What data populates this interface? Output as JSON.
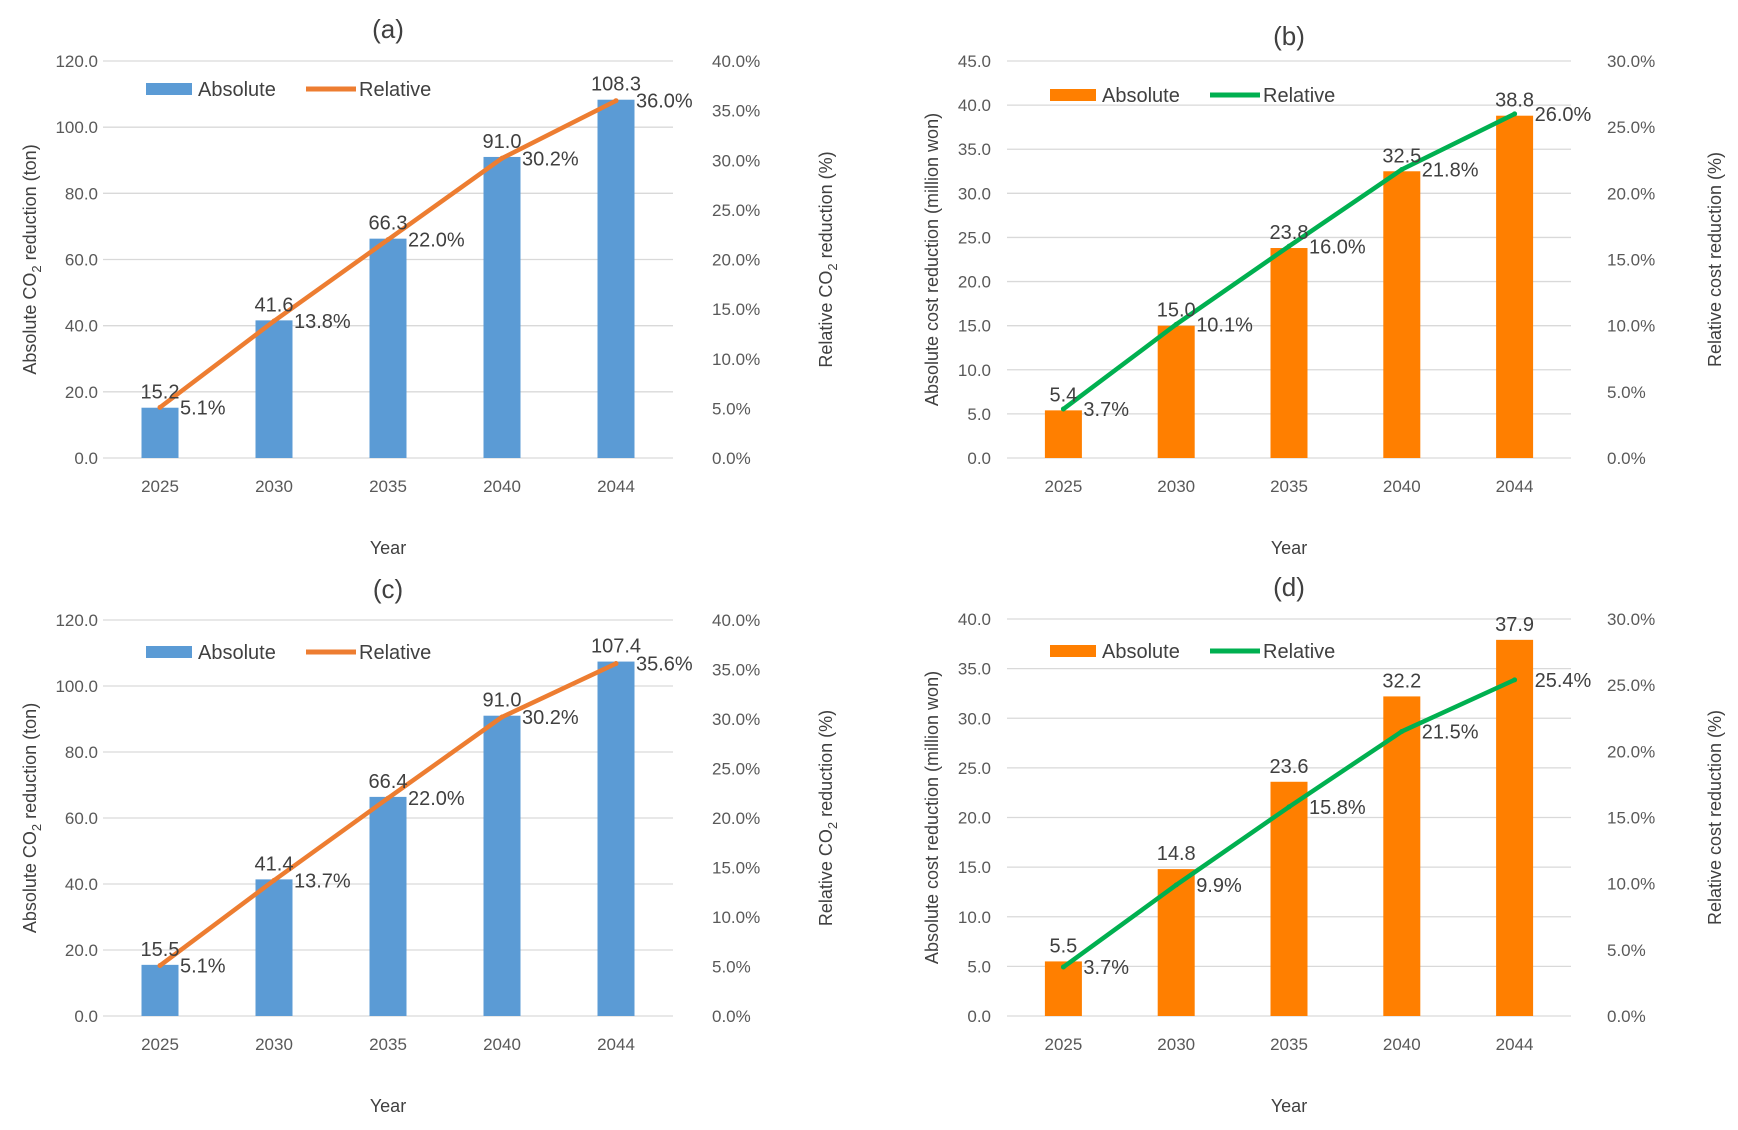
{
  "chart_data": [
    {
      "type": "bar",
      "panel": "(a)",
      "categories": [
        "2025",
        "2030",
        "2035",
        "2040",
        "2044"
      ],
      "series": [
        {
          "name": "Absolute",
          "type": "bar",
          "axis": "left",
          "values": [
            15.2,
            41.6,
            66.3,
            91.0,
            108.3
          ],
          "labels": [
            "15.2",
            "41.6",
            "66.3",
            "91.0",
            "108.3"
          ],
          "color": "#5b9bd5"
        },
        {
          "name": "Relative",
          "type": "line",
          "axis": "right",
          "values": [
            5.1,
            13.8,
            22.0,
            30.2,
            36.0
          ],
          "labels": [
            "5.1%",
            "13.8%",
            "22.0%",
            "30.2%",
            "36.0%"
          ],
          "color": "#ed7d31"
        }
      ],
      "xlabel": "Year",
      "ylabel_main": "Absolute CO",
      "ylabel_sub": "2",
      "ylabel_rest": " reduction (ton)",
      "y2label_main": "Relative CO",
      "y2label_sub": "2",
      "y2label_rest": " reduction (%)",
      "ylim": [
        0,
        120
      ],
      "yticks": [
        "0.0",
        "20.0",
        "40.0",
        "60.0",
        "80.0",
        "100.0",
        "120.0"
      ],
      "y2lim": [
        0,
        40
      ],
      "y2ticks": [
        "0.0%",
        "5.0%",
        "10.0%",
        "15.0%",
        "20.0%",
        "25.0%",
        "30.0%",
        "35.0%",
        "40.0%"
      ],
      "grid": true,
      "legend": "top-left"
    },
    {
      "type": "bar",
      "panel": "(b)",
      "categories": [
        "2025",
        "2030",
        "2035",
        "2040",
        "2044"
      ],
      "series": [
        {
          "name": "Absolute",
          "type": "bar",
          "axis": "left",
          "values": [
            5.4,
            15.0,
            23.8,
            32.5,
            38.8
          ],
          "labels": [
            "5.4",
            "15.0",
            "23.8",
            "32.5",
            "38.8"
          ],
          "color": "#ff7f00"
        },
        {
          "name": "Relative",
          "type": "line",
          "axis": "right",
          "values": [
            3.7,
            10.1,
            16.0,
            21.8,
            26.0
          ],
          "labels": [
            "3.7%",
            "10.1%",
            "16.0%",
            "21.8%",
            "26.0%"
          ],
          "color": "#00b050"
        }
      ],
      "xlabel": "Year",
      "ylabel_main": "Absolute cost reduction (million won)",
      "ylabel_sub": "",
      "ylabel_rest": "",
      "y2label_main": "Relative cost reduction (%)",
      "y2label_sub": "",
      "y2label_rest": "",
      "ylim": [
        0,
        45
      ],
      "yticks": [
        "0.0",
        "5.0",
        "10.0",
        "15.0",
        "20.0",
        "25.0",
        "30.0",
        "35.0",
        "40.0",
        "45.0"
      ],
      "y2lim": [
        0,
        30
      ],
      "y2ticks": [
        "0.0%",
        "5.0%",
        "10.0%",
        "15.0%",
        "20.0%",
        "25.0%",
        "30.0%"
      ],
      "grid": true,
      "legend": "top-left"
    },
    {
      "type": "bar",
      "panel": "(c)",
      "categories": [
        "2025",
        "2030",
        "2035",
        "2040",
        "2044"
      ],
      "series": [
        {
          "name": "Absolute",
          "type": "bar",
          "axis": "left",
          "values": [
            15.5,
            41.4,
            66.4,
            91.0,
            107.4
          ],
          "labels": [
            "15.5",
            "41.4",
            "66.4",
            "91.0",
            "107.4"
          ],
          "color": "#5b9bd5"
        },
        {
          "name": "Relative",
          "type": "line",
          "axis": "right",
          "values": [
            5.1,
            13.7,
            22.0,
            30.2,
            35.6
          ],
          "labels": [
            "5.1%",
            "13.7%",
            "22.0%",
            "30.2%",
            "35.6%"
          ],
          "color": "#ed7d31"
        }
      ],
      "xlabel": "Year",
      "ylabel_main": "Absolute CO",
      "ylabel_sub": "2",
      "ylabel_rest": " reduction (ton)",
      "y2label_main": "Relative CO",
      "y2label_sub": "2",
      "y2label_rest": " reduction (%)",
      "ylim": [
        0,
        120
      ],
      "yticks": [
        "0.0",
        "20.0",
        "40.0",
        "60.0",
        "80.0",
        "100.0",
        "120.0"
      ],
      "y2lim": [
        0,
        40
      ],
      "y2ticks": [
        "0.0%",
        "5.0%",
        "10.0%",
        "15.0%",
        "20.0%",
        "25.0%",
        "30.0%",
        "35.0%",
        "40.0%"
      ],
      "grid": true,
      "legend": "top-left"
    },
    {
      "type": "bar",
      "panel": "(d)",
      "categories": [
        "2025",
        "2030",
        "2035",
        "2040",
        "2044"
      ],
      "series": [
        {
          "name": "Absolute",
          "type": "bar",
          "axis": "left",
          "values": [
            5.5,
            14.8,
            23.6,
            32.2,
            37.9
          ],
          "labels": [
            "5.5",
            "14.8",
            "23.6",
            "32.2",
            "37.9"
          ],
          "color": "#ff7f00"
        },
        {
          "name": "Relative",
          "type": "line",
          "axis": "right",
          "values": [
            3.7,
            9.9,
            15.8,
            21.5,
            25.4
          ],
          "labels": [
            "3.7%",
            "9.9%",
            "15.8%",
            "21.5%",
            "25.4%"
          ],
          "color": "#00b050"
        }
      ],
      "xlabel": "Year",
      "ylabel_main": "Absolute cost reduction (million won)",
      "ylabel_sub": "",
      "ylabel_rest": "",
      "y2label_main": "Relative cost reduction (%)",
      "y2label_sub": "",
      "y2label_rest": "",
      "ylim": [
        0,
        40
      ],
      "yticks": [
        "0.0",
        "5.0",
        "10.0",
        "15.0",
        "20.0",
        "25.0",
        "30.0",
        "35.0",
        "40.0"
      ],
      "y2lim": [
        0,
        30
      ],
      "y2ticks": [
        "0.0%",
        "5.0%",
        "10.0%",
        "15.0%",
        "20.0%",
        "25.0%",
        "30.0%"
      ],
      "grid": true,
      "legend": "top-left"
    }
  ]
}
